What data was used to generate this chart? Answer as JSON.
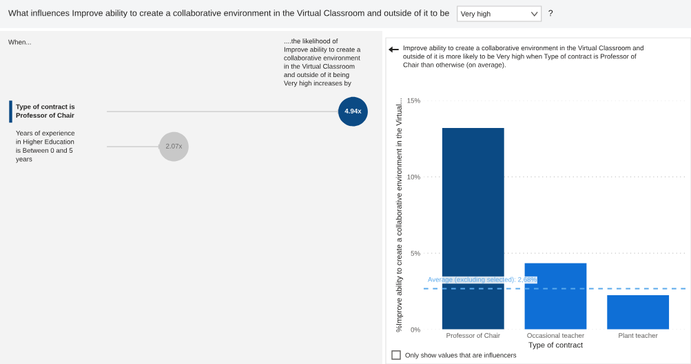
{
  "chart_data": [
    {
      "type": "other",
      "title": "What influences Improve ability to create a collaborative environment in the Virtual Classroom and outside of it to be",
      "annotations": [
        "Very high",
        "?",
        "When...",
        "....the likelihood of Improve ability to create a collaborative environment in the Virtual Classroom and outside of it being Very high increases by"
      ],
      "categories": [
        "Type of contract is Professor of Chair",
        "Years of experience in Higher Education is Between 0 and 5 years"
      ],
      "values": [
        4.94,
        2.07
      ],
      "value_labels": [
        "4.94x",
        "2.07x"
      ],
      "colors": [
        "#0b4a84",
        "#c8c8c8"
      ]
    },
    {
      "type": "bar",
      "title": "Improve ability to create a collaborative environment in the Virtual Classroom and outside of it is more likely to be Very high when Type of contract is Professor of Chair than otherwise (on average).",
      "categories": [
        "Professor of Chair",
        "Occasional teacher",
        "Plant teacher"
      ],
      "values": [
        13.2,
        4.35,
        2.25
      ],
      "colors": [
        "#0b4a84",
        "#0f6fd6",
        "#0f6fd6"
      ],
      "xlabel": "Type of contract",
      "ylabel": "%Improve ability to create a collaborative environment in the Virtual...",
      "ylim": [
        0,
        15
      ],
      "yticks": [
        {
          "value": 0,
          "label": "0%"
        },
        {
          "value": 5,
          "label": "5%"
        },
        {
          "value": 10,
          "label": "10%"
        },
        {
          "value": 15,
          "label": "15%"
        }
      ],
      "grid": "y",
      "ref_lines": [
        {
          "axis": "y",
          "value": 2.68,
          "label": "Average (excluding selected): 2,68%",
          "color": "#5aa9ec",
          "line_style": "dashed"
        }
      ],
      "annotations": [
        "Only show values that are influencers"
      ]
    }
  ]
}
